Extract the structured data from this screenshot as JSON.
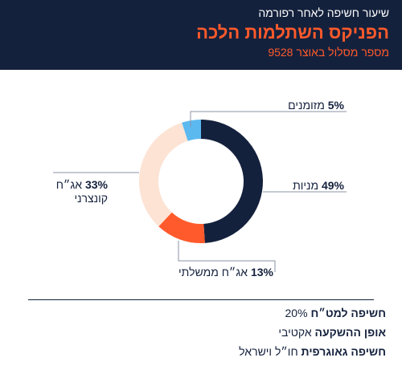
{
  "header": {
    "pretitle": "שיעור חשיפה לאחר רפורמה",
    "title": "הפניקס השתלמות הלכה",
    "subtitle": "מספר מסלול באוצר 9528"
  },
  "chart_data": {
    "type": "pie",
    "donut": true,
    "categories": [
      "מניות",
      "אג״ח ממשלתי",
      "אג״ח קונצרני",
      "מזומנים"
    ],
    "values": [
      49,
      13,
      33,
      5
    ],
    "value_labels": [
      "49%",
      "13%",
      "33%",
      "5%"
    ],
    "colors": [
      "#14213d",
      "#ff5a2b",
      "#fde3d4",
      "#5bb9f0"
    ],
    "labels": {
      "stocks": {
        "pct": "49%",
        "name": "מניות"
      },
      "gov": {
        "pct": "13%",
        "name": "אג״ח ממשלתי"
      },
      "corp": {
        "pct": "33%",
        "name": "אג״ח",
        "name2": "קונצרני"
      },
      "cash": {
        "pct": "5%",
        "name": "מזומנים"
      }
    }
  },
  "info": {
    "exposure_label": "חשיפה למט״ח",
    "exposure_value": "20%",
    "method_label": "אופן ההשקעה",
    "method_value": "אקטיבי",
    "geo_label": "חשיפה גאוגרפית",
    "geo_value": "חו״ל וישראל"
  }
}
